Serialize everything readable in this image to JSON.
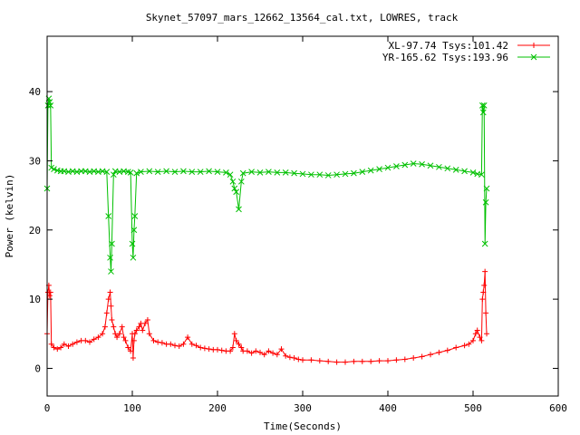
{
  "chart_data": {
    "type": "line",
    "title": "Skynet_57097_mars_12662_13564_cal.txt, LOWRES, track",
    "xlabel": "Time(Seconds)",
    "ylabel": "Power (kelvin)",
    "xlim": [
      0,
      600
    ],
    "ylim": [
      -4,
      48
    ],
    "xticks": [
      0,
      100,
      200,
      300,
      400,
      500,
      600
    ],
    "yticks": [
      0,
      10,
      20,
      30,
      40
    ],
    "grid": false,
    "legend_position": "top-right",
    "series": [
      {
        "name": "XL-97.74 Tsys:101.42",
        "color": "#ff0000",
        "marker": "plus",
        "x": [
          0,
          1,
          2,
          3,
          4,
          5,
          8,
          12,
          16,
          20,
          25,
          30,
          35,
          40,
          45,
          50,
          55,
          60,
          65,
          68,
          70,
          72,
          74,
          75,
          76,
          78,
          80,
          82,
          85,
          88,
          90,
          92,
          95,
          98,
          100,
          101,
          102,
          103,
          105,
          108,
          110,
          112,
          115,
          118,
          120,
          125,
          130,
          135,
          140,
          145,
          150,
          155,
          160,
          165,
          170,
          175,
          180,
          185,
          190,
          195,
          200,
          205,
          210,
          215,
          218,
          220,
          222,
          225,
          228,
          230,
          235,
          240,
          245,
          250,
          255,
          260,
          265,
          270,
          275,
          280,
          285,
          290,
          295,
          300,
          310,
          320,
          330,
          340,
          350,
          360,
          370,
          380,
          390,
          400,
          410,
          420,
          430,
          440,
          450,
          460,
          470,
          480,
          490,
          495,
          500,
          503,
          505,
          508,
          510,
          511,
          512,
          513,
          514,
          515,
          516
        ],
        "y": [
          5,
          11,
          12,
          10.5,
          11,
          3.5,
          3,
          2.8,
          3,
          3.5,
          3.2,
          3.5,
          3.8,
          4,
          4,
          3.8,
          4.2,
          4.5,
          5,
          6,
          8,
          10,
          11,
          9,
          7,
          6,
          5,
          4.5,
          5,
          6,
          4.5,
          4,
          3,
          2.5,
          5,
          1.5,
          4,
          5,
          5.5,
          6,
          6.5,
          5.5,
          6.5,
          7,
          5,
          4,
          3.8,
          3.7,
          3.5,
          3.5,
          3.3,
          3.2,
          3.5,
          4.5,
          3.5,
          3.3,
          3,
          2.9,
          2.8,
          2.7,
          2.7,
          2.6,
          2.5,
          2.5,
          3,
          5,
          4,
          3.5,
          3,
          2.5,
          2.5,
          2.2,
          2.5,
          2.3,
          2,
          2.5,
          2.2,
          2,
          2.8,
          1.8,
          1.6,
          1.5,
          1.3,
          1.2,
          1.2,
          1.1,
          1,
          0.9,
          0.9,
          1,
          1,
          1,
          1.1,
          1.1,
          1.2,
          1.3,
          1.5,
          1.7,
          2,
          2.3,
          2.6,
          3,
          3.3,
          3.5,
          4,
          5,
          5.5,
          4.5,
          4,
          10,
          11,
          12,
          14,
          8,
          5
        ]
      },
      {
        "name": "YR-165.62 Tsys:193.96",
        "color": "#00c000",
        "marker": "cross",
        "x": [
          0,
          1,
          2,
          3,
          4,
          5,
          8,
          12,
          16,
          20,
          25,
          30,
          35,
          40,
          45,
          50,
          55,
          60,
          65,
          70,
          72,
          74,
          75,
          76,
          78,
          80,
          85,
          90,
          95,
          98,
          100,
          101,
          102,
          103,
          105,
          110,
          120,
          130,
          140,
          150,
          160,
          170,
          180,
          190,
          200,
          210,
          215,
          218,
          220,
          222,
          225,
          228,
          230,
          240,
          250,
          260,
          270,
          280,
          290,
          300,
          310,
          320,
          330,
          340,
          350,
          360,
          370,
          380,
          390,
          400,
          410,
          420,
          430,
          440,
          450,
          460,
          470,
          480,
          490,
          500,
          505,
          510,
          511,
          512,
          513,
          514,
          515,
          516
        ],
        "y": [
          26,
          38,
          39,
          38.5,
          38,
          29,
          28.8,
          28.6,
          28.5,
          28.5,
          28.4,
          28.5,
          28.4,
          28.5,
          28.5,
          28.4,
          28.5,
          28.4,
          28.5,
          28.4,
          22,
          16,
          14,
          18,
          28,
          28.5,
          28.4,
          28.5,
          28.4,
          28.3,
          18,
          16,
          20,
          22,
          28.2,
          28.4,
          28.5,
          28.4,
          28.5,
          28.4,
          28.5,
          28.4,
          28.4,
          28.5,
          28.4,
          28.3,
          28,
          27,
          26,
          25.5,
          23,
          27,
          28.2,
          28.4,
          28.3,
          28.4,
          28.3,
          28.3,
          28.2,
          28.1,
          28,
          28,
          27.9,
          28,
          28.1,
          28.2,
          28.4,
          28.6,
          28.8,
          29,
          29.2,
          29.4,
          29.6,
          29.5,
          29.3,
          29.1,
          28.9,
          28.7,
          28.5,
          28.3,
          28.1,
          28,
          38,
          37,
          38,
          18,
          24,
          26
        ]
      }
    ]
  }
}
